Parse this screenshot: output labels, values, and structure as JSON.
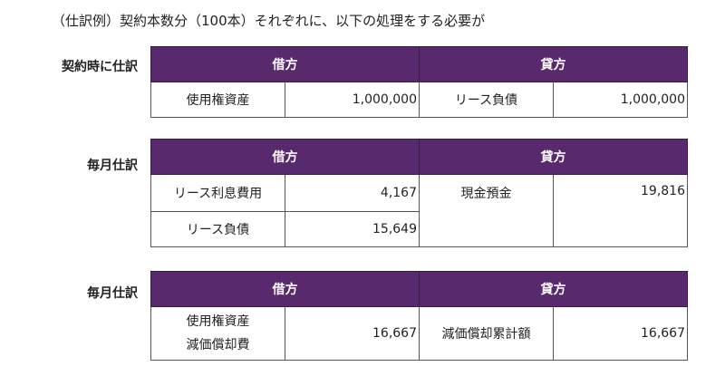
{
  "headline": "（仕訳例）契約本数分（100本）それぞれに、以下の処理をする必要が",
  "headers": {
    "debit": "借方",
    "credit": "貸方"
  },
  "sections": [
    {
      "label": "契約時に仕訳",
      "debit_account": "使用権資産",
      "debit_amount": "1,000,000",
      "credit_account": "リース負債",
      "credit_amount": "1,000,000"
    },
    {
      "label": "毎月仕訳",
      "debit_rows": [
        {
          "account": "リース利息費用",
          "amount": "4,167"
        },
        {
          "account": "リース負債",
          "amount": "15,649"
        }
      ],
      "credit_account": "現金預金",
      "credit_amount": "19,816"
    },
    {
      "label": "毎月仕訳",
      "debit_account_line1": "使用権資産",
      "debit_account_line2": "減価償却費",
      "debit_amount": "16,667",
      "credit_account": "減価償却累計額",
      "credit_amount": "16,667"
    }
  ]
}
